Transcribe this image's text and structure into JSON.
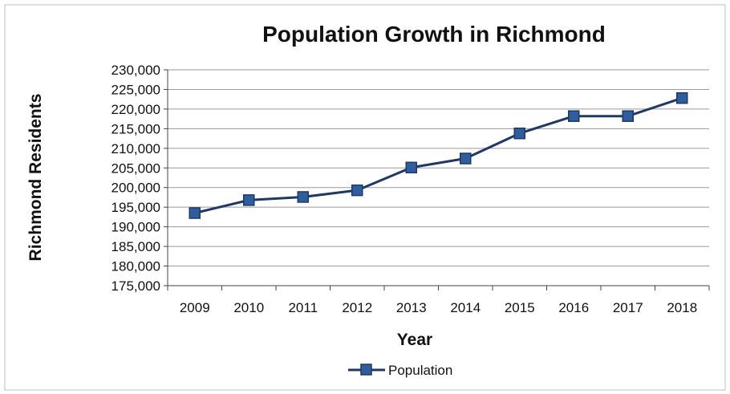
{
  "chart_data": {
    "type": "line",
    "title": "Population Growth in Richmond",
    "xlabel": "Year",
    "ylabel": "Richmond Residents",
    "categories": [
      "2009",
      "2010",
      "2011",
      "2012",
      "2013",
      "2014",
      "2015",
      "2016",
      "2017",
      "2018"
    ],
    "series": [
      {
        "name": "Population",
        "values": [
          193500,
          196800,
          197600,
          199300,
          205100,
          207400,
          213800,
          218200,
          218200,
          222800
        ],
        "color": "#1f3864",
        "marker_color": "#2e5e9e"
      }
    ],
    "ylim": [
      175000,
      230000
    ],
    "yticks": [
      175000,
      180000,
      185000,
      190000,
      195000,
      200000,
      205000,
      210000,
      215000,
      220000,
      225000,
      230000
    ],
    "ytick_labels": [
      "175,000",
      "180,000",
      "185,000",
      "190,000",
      "195,000",
      "200,000",
      "205,000",
      "210,000",
      "215,000",
      "220,000",
      "225,000",
      "230,000"
    ],
    "grid": true,
    "legend_position": "bottom"
  }
}
